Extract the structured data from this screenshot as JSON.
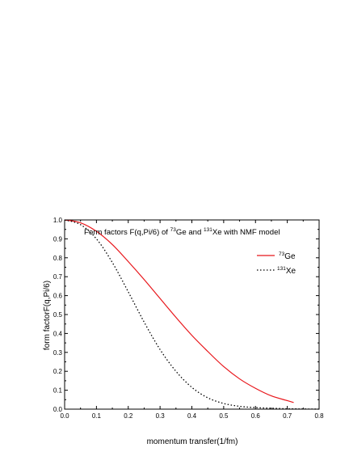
{
  "chart_data": {
    "type": "line",
    "title": {
      "part1": "Form factors F(q,Pi/6) of ",
      "sup1": "73",
      "part2": "Ge and ",
      "sup2": "131",
      "part3": "Xe with NMF model"
    },
    "xlabel": "momentum transfer(1/fm)",
    "ylabel": "form factorF(q,Pi/6)",
    "xlim": [
      0.0,
      0.8
    ],
    "ylim": [
      0.0,
      1.0
    ],
    "x_ticks": [
      "0.0",
      "0.1",
      "0.2",
      "0.3",
      "0.4",
      "0.5",
      "0.6",
      "0.7",
      "0.8"
    ],
    "y_ticks": [
      "0.0",
      "0.1",
      "0.2",
      "0.3",
      "0.4",
      "0.5",
      "0.6",
      "0.7",
      "0.8",
      "0.9",
      "1.0"
    ],
    "grid": false,
    "legend_position": "top-right",
    "series": [
      {
        "name_sup": "73",
        "name_main": "Ge",
        "style": "solid",
        "color": "#e8161b",
        "x": [
          0.0,
          0.05,
          0.1,
          0.15,
          0.2,
          0.25,
          0.3,
          0.35,
          0.4,
          0.45,
          0.5,
          0.55,
          0.6,
          0.65,
          0.7,
          0.72
        ],
        "y": [
          1.0,
          0.985,
          0.94,
          0.87,
          0.78,
          0.685,
          0.585,
          0.485,
          0.39,
          0.305,
          0.225,
          0.16,
          0.11,
          0.07,
          0.045,
          0.035
        ]
      },
      {
        "name_sup": "131",
        "name_main": "Xe",
        "style": "dotted",
        "color": "#000000",
        "x": [
          0.0,
          0.05,
          0.1,
          0.15,
          0.2,
          0.25,
          0.3,
          0.35,
          0.4,
          0.45,
          0.5,
          0.55,
          0.6,
          0.65,
          0.7,
          0.75,
          0.8
        ],
        "y": [
          1.0,
          0.975,
          0.9,
          0.775,
          0.62,
          0.46,
          0.315,
          0.2,
          0.115,
          0.06,
          0.03,
          0.015,
          0.008,
          0.005,
          0.002,
          0.001,
          0.0
        ]
      }
    ]
  }
}
